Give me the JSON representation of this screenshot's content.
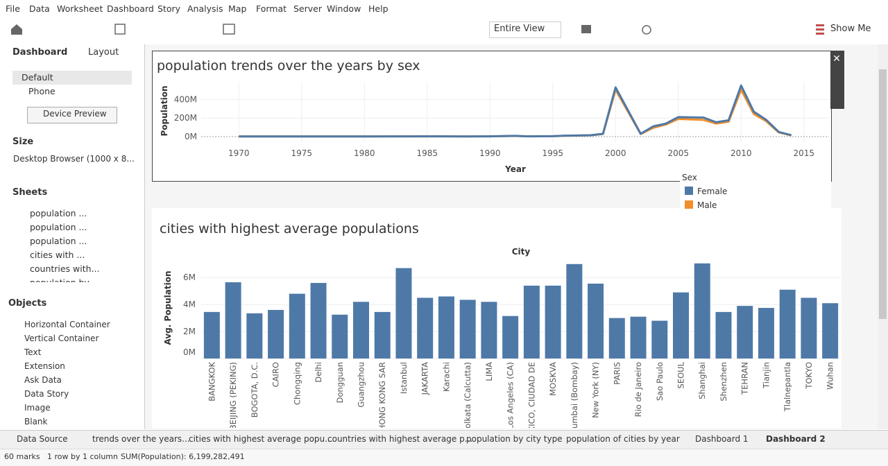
{
  "menu": [
    "File",
    "Data",
    "Worksheet",
    "Dashboard",
    "Story",
    "Analysis",
    "Map",
    "Format",
    "Server",
    "Window",
    "Help"
  ],
  "toolbar": {
    "view": "Entire View",
    "show_me": "Show Me"
  },
  "side": {
    "tabs": [
      "Dashboard",
      "Layout"
    ],
    "devices": [
      "Default",
      "Phone"
    ],
    "device_preview": "Device Preview",
    "size_title": "Size",
    "size": "Desktop Browser (1000 x 8...",
    "sheets_title": "Sheets",
    "sheets": [
      "population ...",
      "population ...",
      "population ...",
      "cities with ...",
      "countries with...",
      "population by..."
    ],
    "objects_title": "Objects",
    "objects": [
      "Horizontal Container",
      "Vertical Container",
      "Text",
      "Extension",
      "Ask Data",
      "Data Story",
      "Image",
      "Blank"
    ]
  },
  "chart_data": [
    {
      "type": "line",
      "title": "population trends over the years by sex",
      "x_label": "Year",
      "y_label": "Population",
      "x": [
        1970,
        1975,
        1980,
        1985,
        1988,
        1990,
        1992,
        1993,
        1995,
        1996,
        1997,
        1998,
        1999,
        2000,
        2002,
        2003,
        2004,
        2005,
        2007,
        2008,
        2009,
        2010,
        2011,
        2012,
        2013,
        2014
      ],
      "legend_title": "Sex",
      "series": [
        {
          "name": "Female",
          "color": "#4e79a7",
          "values": [
            2000000,
            2000000,
            2000000,
            3000000,
            2000000,
            3000000,
            8000000,
            3000000,
            4000000,
            10000000,
            12000000,
            15000000,
            30000000,
            530000000,
            30000000,
            110000000,
            140000000,
            210000000,
            205000000,
            155000000,
            175000000,
            550000000,
            270000000,
            180000000,
            50000000,
            15000000
          ]
        },
        {
          "name": "Male",
          "color": "#f28e2b",
          "values": [
            2000000,
            2000000,
            2000000,
            3000000,
            2000000,
            3000000,
            7000000,
            3000000,
            4000000,
            9000000,
            11000000,
            14000000,
            28000000,
            505000000,
            28000000,
            95000000,
            130000000,
            190000000,
            180000000,
            140000000,
            160000000,
            505000000,
            245000000,
            165000000,
            45000000,
            13000000
          ]
        }
      ],
      "xlim": [
        1967,
        2017
      ],
      "xticks": [
        1970,
        1975,
        1980,
        1985,
        1990,
        1995,
        2000,
        2005,
        2010,
        2015
      ],
      "ylim": [
        -60000000,
        590000000
      ],
      "yticks": [
        {
          "value": 0,
          "label": "0M"
        },
        {
          "value": 200000000,
          "label": "200M"
        },
        {
          "value": 400000000,
          "label": "400M"
        }
      ],
      "grid": true
    },
    {
      "type": "bar",
      "title": "cities with highest average populations",
      "x_label": "City",
      "y_label": "Avg. Population",
      "color": "#4e79a7",
      "categories": [
        "BANGKOK",
        "BEIJING (PEKING)",
        "BOGOTA, D.C.",
        "CAIRO",
        "Chongqing",
        "Delhi",
        "Dongguan",
        "Guangzhou",
        "HONG KONG SAR",
        "Istanbul",
        "JAKARTA",
        "Karachi",
        "Kolkata (Calcutta)",
        "LIMA",
        "Los Angeles (CA)",
        "MEXICO, CIUDAD DE",
        "MOSKVA",
        "Mumbai (Bombay)",
        "New York (NY)",
        "PARIS",
        "Rio de Janeiro",
        "Sao Paulo",
        "SEOUL",
        "Shanghai",
        "Shenzhen",
        "TEHRAN",
        "Tianjin",
        "Tlalnepantla",
        "TOKYO",
        "Wuhan"
      ],
      "values": [
        3450000,
        5650000,
        3350000,
        3600000,
        4800000,
        5600000,
        3250000,
        4200000,
        3450000,
        6700000,
        4500000,
        4600000,
        4350000,
        4200000,
        3150000,
        5400000,
        5400000,
        7000000,
        5550000,
        3000000,
        3100000,
        2800000,
        4900000,
        7050000,
        3450000,
        3900000,
        3750000,
        5100000,
        4500000,
        4100000
      ],
      "ylim": [
        0,
        7400000
      ],
      "yticks": [
        {
          "value": 0,
          "label": "0M"
        },
        {
          "value": 2000000,
          "label": "2M"
        },
        {
          "value": 4000000,
          "label": "4M"
        },
        {
          "value": 6000000,
          "label": "6M"
        }
      ],
      "grid": true
    }
  ],
  "tabs": [
    "Data Source",
    "trends over the years...",
    "cities with highest average popu...",
    "countries with highest average p...",
    "population by city type",
    "population of cities by year",
    "Dashboard 1",
    "Dashboard 2"
  ],
  "status": [
    "60 marks",
    "1 row by 1 column",
    "SUM(Population): 6,199,282,491"
  ]
}
